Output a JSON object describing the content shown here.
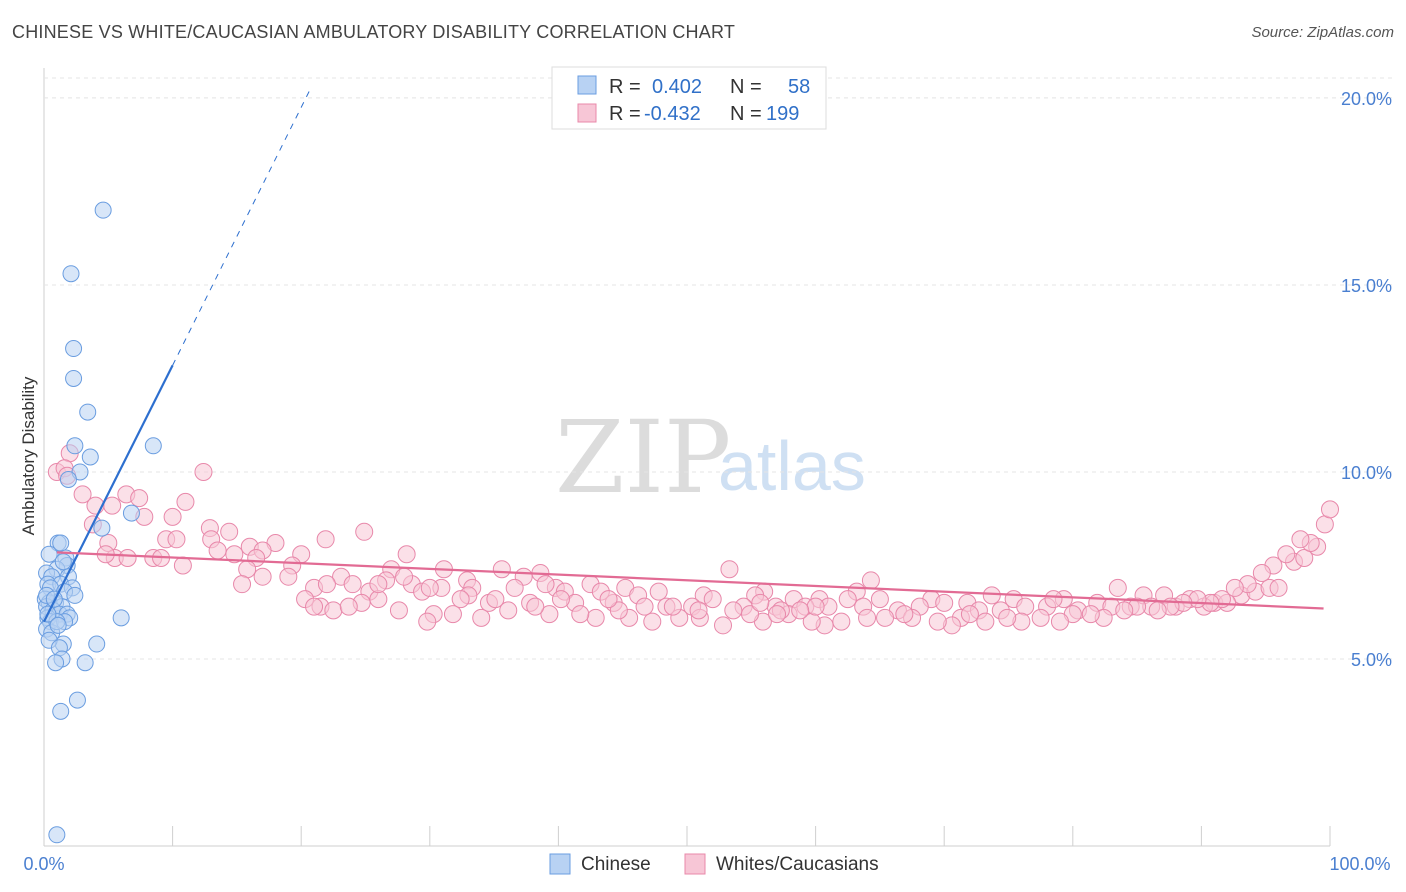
{
  "title": "CHINESE VS WHITE/CAUCASIAN AMBULATORY DISABILITY CORRELATION CHART",
  "source": "Source: ZipAtlas.com",
  "watermark": {
    "zip": "ZIP",
    "atlas": "atlas"
  },
  "colors": {
    "chinese": "#6a9de0",
    "chinese_fill": "#b8d2f3",
    "white": "#e888aa",
    "white_fill": "#f7c6d6",
    "blue_line": "#2d6fcf",
    "pink_line": "#e26b94",
    "tick_text": "#4a7fd0"
  },
  "legend": {
    "rows": [
      {
        "r_label": "R =",
        "r_value": "0.402",
        "n_label": "N =",
        "n_value": "58"
      },
      {
        "r_label": "R =",
        "r_value": "-0.432",
        "n_label": "N =",
        "n_value": "199"
      }
    ]
  },
  "bottom_legend": [
    "Chinese",
    "Whites/Caucasians"
  ],
  "chart_data": {
    "type": "scatter",
    "title": "CHINESE VS WHITE/CAUCASIAN AMBULATORY DISABILITY CORRELATION CHART",
    "xlabel": "",
    "ylabel": "Ambulatory Disability",
    "xlim": [
      0,
      100
    ],
    "ylim": [
      0,
      20.8
    ],
    "x_tick_labels": [
      "0.0%",
      "100.0%"
    ],
    "y_ticks": [
      5,
      10,
      15,
      20
    ],
    "y_tick_labels": [
      "5.0%",
      "10.0%",
      "15.0%",
      "20.0%"
    ],
    "series": [
      {
        "name": "Chinese",
        "R": 0.402,
        "N": 58,
        "trend": {
          "x": [
            0,
            10
          ],
          "y": [
            6.0,
            12.85
          ]
        },
        "trend_extension": {
          "x": [
            10,
            20.8
          ],
          "y": [
            12.85,
            20.3
          ]
        },
        "points": [
          [
            4.6,
            17.0
          ],
          [
            2.1,
            15.3
          ],
          [
            2.3,
            13.3
          ],
          [
            2.3,
            12.5
          ],
          [
            3.4,
            11.6
          ],
          [
            8.5,
            10.7
          ],
          [
            2.4,
            10.7
          ],
          [
            3.6,
            10.4
          ],
          [
            2.8,
            10.0
          ],
          [
            1.9,
            9.8
          ],
          [
            4.5,
            8.5
          ],
          [
            6.8,
            8.9
          ],
          [
            1.1,
            8.1
          ],
          [
            1.3,
            8.1
          ],
          [
            0.4,
            7.8
          ],
          [
            1.7,
            7.7
          ],
          [
            1.8,
            7.5
          ],
          [
            1.0,
            7.4
          ],
          [
            0.2,
            7.3
          ],
          [
            0.6,
            7.2
          ],
          [
            1.9,
            7.2
          ],
          [
            0.3,
            7.0
          ],
          [
            1.3,
            7.0
          ],
          [
            2.2,
            6.9
          ],
          [
            0.5,
            6.9
          ],
          [
            1.6,
            6.8
          ],
          [
            2.4,
            6.7
          ],
          [
            0.1,
            6.6
          ],
          [
            0.9,
            6.5
          ],
          [
            0.4,
            6.5
          ],
          [
            1.4,
            6.4
          ],
          [
            0.2,
            6.4
          ],
          [
            0.7,
            6.3
          ],
          [
            1.2,
            6.2
          ],
          [
            1.8,
            6.2
          ],
          [
            0.3,
            6.1
          ],
          [
            2.0,
            6.1
          ],
          [
            6.0,
            6.1
          ],
          [
            0.5,
            6.0
          ],
          [
            1.6,
            6.0
          ],
          [
            0.2,
            5.8
          ],
          [
            0.6,
            5.7
          ],
          [
            1.5,
            5.4
          ],
          [
            4.1,
            5.4
          ],
          [
            0.4,
            5.5
          ],
          [
            1.2,
            5.3
          ],
          [
            1.4,
            5.0
          ],
          [
            0.9,
            4.9
          ],
          [
            3.2,
            4.9
          ],
          [
            2.6,
            3.9
          ],
          [
            1.3,
            3.6
          ],
          [
            1.0,
            0.3
          ],
          [
            0.2,
            6.7
          ],
          [
            1.0,
            6.0
          ],
          [
            0.8,
            6.6
          ],
          [
            1.5,
            7.6
          ],
          [
            0.3,
            6.2
          ],
          [
            1.1,
            5.9
          ]
        ]
      },
      {
        "name": "Whites/Caucasians",
        "R": -0.432,
        "N": 199,
        "trend": {
          "x": [
            1,
            99.5
          ],
          "y": [
            7.85,
            6.35
          ]
        },
        "points": [
          [
            2.0,
            10.5
          ],
          [
            1.0,
            10.0
          ],
          [
            1.6,
            10.1
          ],
          [
            12.4,
            10.0
          ],
          [
            1.8,
            9.9
          ],
          [
            3.0,
            9.4
          ],
          [
            6.4,
            9.4
          ],
          [
            7.4,
            9.3
          ],
          [
            11.0,
            9.2
          ],
          [
            5.3,
            9.1
          ],
          [
            4.0,
            9.1
          ],
          [
            7.8,
            8.8
          ],
          [
            10.0,
            8.8
          ],
          [
            3.8,
            8.6
          ],
          [
            12.9,
            8.5
          ],
          [
            14.4,
            8.4
          ],
          [
            21.9,
            8.2
          ],
          [
            24.9,
            8.4
          ],
          [
            9.5,
            8.2
          ],
          [
            10.3,
            8.2
          ],
          [
            13.0,
            8.2
          ],
          [
            18.0,
            8.1
          ],
          [
            5.0,
            8.1
          ],
          [
            16.0,
            8.0
          ],
          [
            13.5,
            7.9
          ],
          [
            17.0,
            7.9
          ],
          [
            14.8,
            7.8
          ],
          [
            20.0,
            7.8
          ],
          [
            28.2,
            7.8
          ],
          [
            8.5,
            7.7
          ],
          [
            9.1,
            7.7
          ],
          [
            16.5,
            7.7
          ],
          [
            19.3,
            7.5
          ],
          [
            5.5,
            7.7
          ],
          [
            6.5,
            7.7
          ],
          [
            4.8,
            7.8
          ],
          [
            10.8,
            7.5
          ],
          [
            15.8,
            7.4
          ],
          [
            27.0,
            7.4
          ],
          [
            31.1,
            7.4
          ],
          [
            35.6,
            7.4
          ],
          [
            38.6,
            7.3
          ],
          [
            53.3,
            7.4
          ],
          [
            17.0,
            7.2
          ],
          [
            19.0,
            7.2
          ],
          [
            23.1,
            7.2
          ],
          [
            26.6,
            7.1
          ],
          [
            32.9,
            7.1
          ],
          [
            37.3,
            7.2
          ],
          [
            42.5,
            7.0
          ],
          [
            15.4,
            7.0
          ],
          [
            28.6,
            7.0
          ],
          [
            21.0,
            6.9
          ],
          [
            30.9,
            6.9
          ],
          [
            33.3,
            6.9
          ],
          [
            39.8,
            6.9
          ],
          [
            36.6,
            6.9
          ],
          [
            45.2,
            6.9
          ],
          [
            56.0,
            6.8
          ],
          [
            63.2,
            6.8
          ],
          [
            64.3,
            7.1
          ],
          [
            25.3,
            6.8
          ],
          [
            29.4,
            6.8
          ],
          [
            33.0,
            6.7
          ],
          [
            40.5,
            6.8
          ],
          [
            43.3,
            6.8
          ],
          [
            46.2,
            6.7
          ],
          [
            47.8,
            6.8
          ],
          [
            51.3,
            6.7
          ],
          [
            55.3,
            6.7
          ],
          [
            58.3,
            6.6
          ],
          [
            60.3,
            6.6
          ],
          [
            62.5,
            6.6
          ],
          [
            65.0,
            6.6
          ],
          [
            69.0,
            6.6
          ],
          [
            71.8,
            6.5
          ],
          [
            73.7,
            6.7
          ],
          [
            75.4,
            6.6
          ],
          [
            79.3,
            6.6
          ],
          [
            81.9,
            6.5
          ],
          [
            85.5,
            6.7
          ],
          [
            87.1,
            6.7
          ],
          [
            89.1,
            6.6
          ],
          [
            91.0,
            6.5
          ],
          [
            93.1,
            6.7
          ],
          [
            94.2,
            6.8
          ],
          [
            26.0,
            6.6
          ],
          [
            20.3,
            6.6
          ],
          [
            24.7,
            6.5
          ],
          [
            21.5,
            6.4
          ],
          [
            22.5,
            6.3
          ],
          [
            34.6,
            6.5
          ],
          [
            37.8,
            6.5
          ],
          [
            41.3,
            6.5
          ],
          [
            44.3,
            6.5
          ],
          [
            48.4,
            6.4
          ],
          [
            50.4,
            6.4
          ],
          [
            52.0,
            6.6
          ],
          [
            54.4,
            6.4
          ],
          [
            56.9,
            6.4
          ],
          [
            59.2,
            6.4
          ],
          [
            61.0,
            6.4
          ],
          [
            63.7,
            6.4
          ],
          [
            66.4,
            6.3
          ],
          [
            68.1,
            6.4
          ],
          [
            70.0,
            6.5
          ],
          [
            72.7,
            6.3
          ],
          [
            74.4,
            6.3
          ],
          [
            76.3,
            6.4
          ],
          [
            78.0,
            6.4
          ],
          [
            80.4,
            6.3
          ],
          [
            83.0,
            6.4
          ],
          [
            84.5,
            6.4
          ],
          [
            86.1,
            6.4
          ],
          [
            88.0,
            6.4
          ],
          [
            90.2,
            6.4
          ],
          [
            92.0,
            6.5
          ],
          [
            95.3,
            6.9
          ],
          [
            96.0,
            6.9
          ],
          [
            97.2,
            7.6
          ],
          [
            98.0,
            7.7
          ],
          [
            99.0,
            8.0
          ],
          [
            99.6,
            8.6
          ],
          [
            100.0,
            9.0
          ],
          [
            98.5,
            8.1
          ],
          [
            97.7,
            8.2
          ],
          [
            96.6,
            7.8
          ],
          [
            95.6,
            7.5
          ],
          [
            94.7,
            7.3
          ],
          [
            93.6,
            7.0
          ],
          [
            92.6,
            6.9
          ],
          [
            91.6,
            6.6
          ],
          [
            90.7,
            6.5
          ],
          [
            89.7,
            6.6
          ],
          [
            88.6,
            6.5
          ],
          [
            87.6,
            6.4
          ],
          [
            86.6,
            6.3
          ],
          [
            85.0,
            6.4
          ],
          [
            84.0,
            6.3
          ],
          [
            82.4,
            6.1
          ],
          [
            81.4,
            6.2
          ],
          [
            80.0,
            6.2
          ],
          [
            79.0,
            6.0
          ],
          [
            77.5,
            6.1
          ],
          [
            76.0,
            6.0
          ],
          [
            74.9,
            6.1
          ],
          [
            73.2,
            6.0
          ],
          [
            71.3,
            6.1
          ],
          [
            70.6,
            5.9
          ],
          [
            69.5,
            6.0
          ],
          [
            67.5,
            6.1
          ],
          [
            66.9,
            6.2
          ],
          [
            65.4,
            6.1
          ],
          [
            64.0,
            6.1
          ],
          [
            62.0,
            6.0
          ],
          [
            60.7,
            5.9
          ],
          [
            59.7,
            6.0
          ],
          [
            57.9,
            6.2
          ],
          [
            55.9,
            6.0
          ],
          [
            54.9,
            6.2
          ],
          [
            52.8,
            5.9
          ],
          [
            51.0,
            6.1
          ],
          [
            49.4,
            6.1
          ],
          [
            47.3,
            6.0
          ],
          [
            45.5,
            6.1
          ],
          [
            42.9,
            6.1
          ],
          [
            41.7,
            6.2
          ],
          [
            39.3,
            6.2
          ],
          [
            36.1,
            6.3
          ],
          [
            34.0,
            6.1
          ],
          [
            30.3,
            6.2
          ],
          [
            29.8,
            6.0
          ],
          [
            31.8,
            6.2
          ],
          [
            27.6,
            6.3
          ],
          [
            23.7,
            6.4
          ],
          [
            21.0,
            6.4
          ],
          [
            60.0,
            6.4
          ],
          [
            58.8,
            6.3
          ],
          [
            57.3,
            6.3
          ],
          [
            55.7,
            6.5
          ],
          [
            53.6,
            6.3
          ],
          [
            50.9,
            6.3
          ],
          [
            48.9,
            6.4
          ],
          [
            46.7,
            6.4
          ],
          [
            44.7,
            6.3
          ],
          [
            43.9,
            6.6
          ],
          [
            40.2,
            6.6
          ],
          [
            38.2,
            6.4
          ],
          [
            35.1,
            6.6
          ],
          [
            32.4,
            6.6
          ],
          [
            30.0,
            6.9
          ],
          [
            28.0,
            7.2
          ],
          [
            26.0,
            7.0
          ],
          [
            24.0,
            7.0
          ],
          [
            22.0,
            7.0
          ],
          [
            39.0,
            7.0
          ],
          [
            57.0,
            6.2
          ],
          [
            72.0,
            6.2
          ],
          [
            78.5,
            6.6
          ],
          [
            83.5,
            6.9
          ]
        ]
      }
    ]
  }
}
